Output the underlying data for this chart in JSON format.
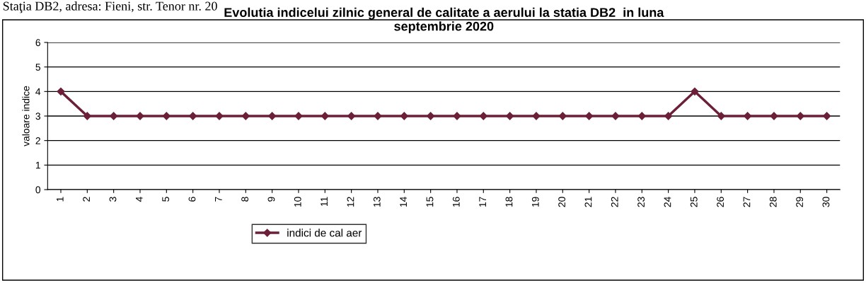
{
  "chart_data": {
    "type": "line",
    "title": "Evolutia indicelui zilnic general de calitate a aerului la statia DB2  in luna\nseptembrie 2020",
    "ylabel": "valoare indice",
    "categories": [
      "1",
      "2",
      "3",
      "4",
      "5",
      "6",
      "7",
      "8",
      "9",
      "10",
      "11",
      "12",
      "13",
      "14",
      "15",
      "16",
      "17",
      "18",
      "19",
      "20",
      "21",
      "22",
      "23",
      "24",
      "25",
      "26",
      "27",
      "28",
      "29",
      "30"
    ],
    "series": [
      {
        "name": "indici de cal aer",
        "color": "#6b2038",
        "values": [
          4,
          3,
          3,
          3,
          3,
          3,
          3,
          3,
          3,
          3,
          3,
          3,
          3,
          3,
          3,
          3,
          3,
          3,
          3,
          3,
          3,
          3,
          3,
          3,
          4,
          3,
          3,
          3,
          3,
          3
        ]
      }
    ],
    "ylim": [
      0,
      6
    ],
    "yticks": [
      0,
      1,
      2,
      3,
      4,
      5,
      6
    ],
    "grid": "y",
    "legend": "bottom",
    "marker": "diamond",
    "line_style": "solid",
    "annotations": [
      "Staţia DB2, adresa: Fieni, str. Tenor nr. 20"
    ]
  }
}
